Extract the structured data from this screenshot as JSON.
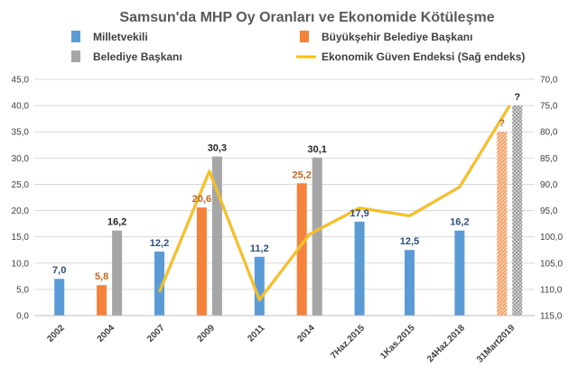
{
  "chart_data": {
    "type": "bar",
    "title": "Samsun'da MHP Oy Oranları ve Ekonomide Kötüleşme",
    "categories": [
      "2002",
      "2004",
      "2007",
      "2009",
      "2011",
      "2014",
      "7Haz.2015",
      "1Kas.2015",
      "24Haz.2018",
      "31Mart2019"
    ],
    "ylim": [
      0,
      45
    ],
    "y_ticks": [
      "0,0",
      "5,0",
      "10,0",
      "15,0",
      "20,0",
      "25,0",
      "30,0",
      "35,0",
      "40,0",
      "45,0"
    ],
    "y2lim": [
      70,
      115
    ],
    "y2_reversed": true,
    "y2_ticks": [
      "70,0",
      "75,0",
      "80,0",
      "85,0",
      "90,0",
      "95,0",
      "100,0",
      "105,0",
      "110,0",
      "115,0"
    ],
    "grid": true,
    "legend_position": "top",
    "series": [
      {
        "name": "Milletvekili",
        "kind": "bar",
        "color": "#5B9BD5",
        "label_color": "#2E4D7B",
        "values": [
          7.0,
          null,
          12.2,
          null,
          11.2,
          null,
          17.9,
          12.5,
          16.2,
          null
        ],
        "labels": [
          "7,0",
          "",
          "12,2",
          "",
          "11,2",
          "",
          "17,9",
          "12,5",
          "16,2",
          ""
        ]
      },
      {
        "name": "Büyükşehir Belediye Başkanı",
        "kind": "bar",
        "color": "#F5823A",
        "label_color": "#C0651E",
        "values": [
          null,
          5.8,
          null,
          20.6,
          null,
          25.2,
          null,
          null,
          null,
          35.0
        ],
        "labels": [
          "",
          "5,8",
          "",
          "20,6",
          "",
          "25,2",
          "",
          "",
          "",
          "?"
        ],
        "hatched_last": true
      },
      {
        "name": "Belediye Başkanı",
        "kind": "bar",
        "color": "#A6A6A6",
        "label_color": "#262626",
        "values": [
          null,
          16.2,
          null,
          30.3,
          null,
          30.1,
          null,
          null,
          null,
          40.0
        ],
        "labels": [
          "",
          "16,2",
          "",
          "30,3",
          "",
          "30,1",
          "",
          "",
          "",
          "?"
        ],
        "hatched_last": true
      },
      {
        "name": "Ekonomik Güven Endeksi (Sağ endeks)",
        "kind": "line",
        "axis": "right",
        "color": "#FFC000",
        "values": [
          null,
          null,
          110.5,
          87.5,
          112.0,
          99.5,
          94.5,
          96.0,
          90.5,
          75.0
        ]
      }
    ]
  }
}
